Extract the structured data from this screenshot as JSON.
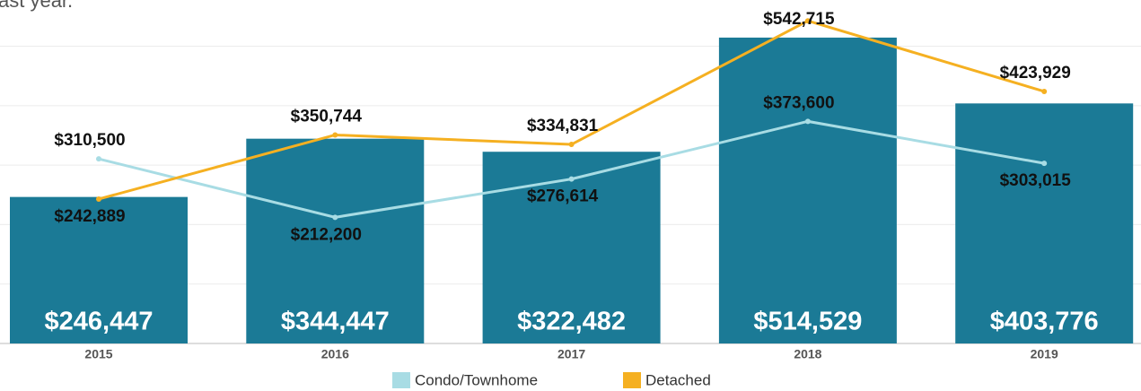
{
  "caption": "ast year.",
  "chart_data": {
    "type": "bar_line",
    "categories": [
      "2015",
      "2016",
      "2017",
      "2018",
      "2019"
    ],
    "bar": {
      "color": "#1b7a96",
      "values": [
        246447,
        344447,
        322482,
        514529,
        403776
      ],
      "value_labels": [
        "$246,447",
        "$344,447",
        "$322,482",
        "$514,529",
        "$403,776"
      ]
    },
    "series": [
      {
        "name": "Condo/Townhome",
        "color": "#a8dce4",
        "values": [
          310500,
          212200,
          276614,
          373600,
          303015
        ],
        "value_labels": [
          "$310,500",
          "$212,200",
          "$276,614",
          "$373,600",
          "$303,015"
        ]
      },
      {
        "name": "Detached",
        "color": "#f5b021",
        "values": [
          242889,
          350744,
          334831,
          542715,
          423929
        ],
        "value_labels": [
          "$242,889",
          "$350,744",
          "$334,831",
          "$542,715",
          "$423,929"
        ]
      }
    ],
    "ylim": [
      0,
      550000
    ],
    "yticks": [
      0,
      100000,
      200000,
      300000,
      400000,
      500000
    ],
    "grid": true
  }
}
